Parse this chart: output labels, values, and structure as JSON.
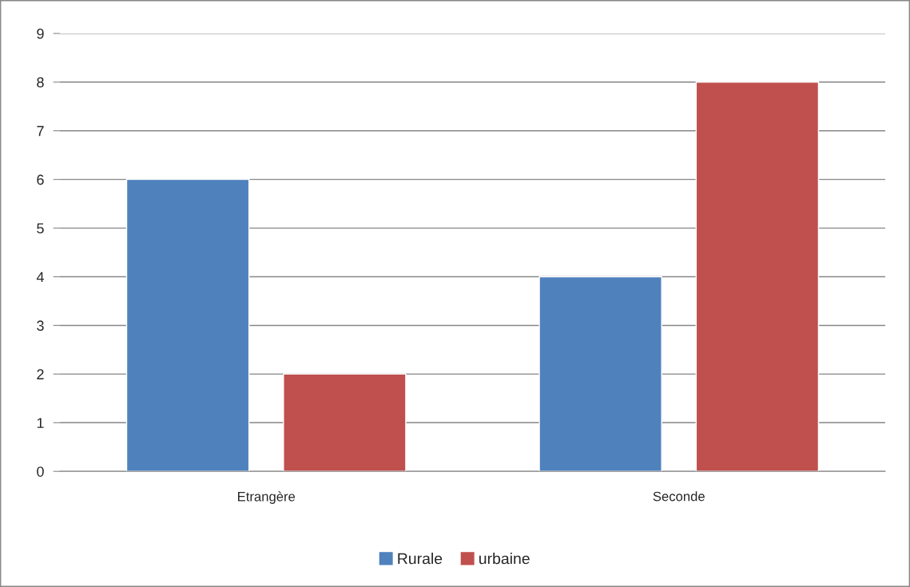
{
  "chart_data": {
    "type": "bar",
    "categories": [
      "Etrangère",
      "Seconde"
    ],
    "series": [
      {
        "name": "Rurale",
        "color": "#4f81bd",
        "values": [
          6,
          4
        ]
      },
      {
        "name": "urbaine",
        "color": "#c0504d",
        "values": [
          2,
          8
        ]
      }
    ],
    "ylim": [
      0,
      9
    ],
    "yticks": [
      0,
      1,
      2,
      3,
      4,
      5,
      6,
      7,
      8,
      9
    ],
    "grid": "y",
    "legend": "bottom"
  }
}
